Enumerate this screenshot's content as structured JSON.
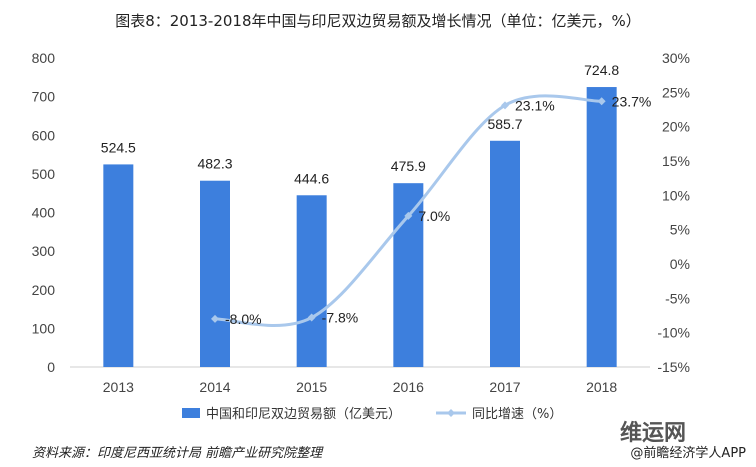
{
  "title": "图表8：2013-2018年中国与印尼双边贸易额及增长情况（单位：亿美元，%）",
  "source": "资料来源：印度尼西亚统计局 前瞻产业研究院整理",
  "brand": "@前瞻经济学人APP",
  "watermark_text": "维运网",
  "colors": {
    "bar": "#3d7fdd",
    "line": "#a9c8ec",
    "marker": "#a9c8ec"
  },
  "chart_data": {
    "type": "bar",
    "categories": [
      "2013",
      "2014",
      "2015",
      "2016",
      "2017",
      "2018"
    ],
    "series": [
      {
        "name": "中国和印尼双边贸易额（亿美元）",
        "type": "bar",
        "axis": "left",
        "values": [
          524.5,
          482.3,
          444.6,
          475.9,
          585.7,
          724.8
        ],
        "labels": [
          "524.5",
          "482.3",
          "444.6",
          "475.9",
          "585.7",
          "724.8"
        ]
      },
      {
        "name": "同比增速（%）",
        "type": "line",
        "axis": "right",
        "values": [
          null,
          -8.0,
          -7.8,
          7.0,
          23.1,
          23.7
        ],
        "labels": [
          "",
          "-8.0%",
          "-7.8%",
          "7.0%",
          "23.1%",
          "23.7%"
        ]
      }
    ],
    "y_left": {
      "lim": [
        0,
        800
      ],
      "ticks": [
        "0",
        "100",
        "200",
        "300",
        "400",
        "500",
        "600",
        "700",
        "800"
      ]
    },
    "y_right": {
      "lim": [
        -15,
        30
      ],
      "ticks": [
        "-15%",
        "-10%",
        "-5%",
        "0%",
        "5%",
        "10%",
        "15%",
        "20%",
        "25%",
        "30%"
      ]
    },
    "grid": false,
    "legend_position": "bottom"
  }
}
